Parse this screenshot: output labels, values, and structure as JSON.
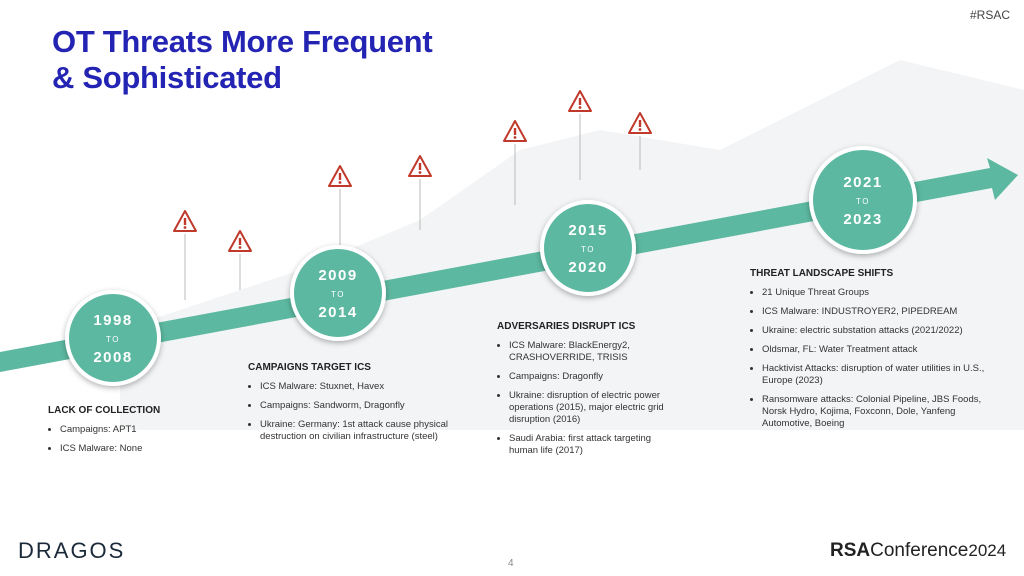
{
  "header": {
    "tag": "#RSAC",
    "title": [
      "OT Threats More Frequent",
      "& Sophisticated"
    ]
  },
  "timeline": [
    {
      "start": "1998",
      "to": "TO",
      "end": "2008",
      "heading": "LACK OF COLLECTION",
      "bullets": [
        "Campaigns: APT1",
        "ICS Malware: None"
      ]
    },
    {
      "start": "2009",
      "to": "TO",
      "end": "2014",
      "heading": "CAMPAIGNS TARGET ICS",
      "bullets": [
        "ICS Malware: Stuxnet, Havex",
        "Campaigns: Sandworm, Dragonfly",
        "Ukraine: Germany: 1st attack cause physical destruction on civilian infrastructure (steel)"
      ]
    },
    {
      "start": "2015",
      "to": "TO",
      "end": "2020",
      "heading": "ADVERSARIES DISRUPT ICS",
      "bullets": [
        "ICS Malware: BlackEnergy2, CRASHOVERRIDE, TRISIS",
        "Campaigns: Dragonfly",
        "Ukraine: disruption of electric power operations (2015), major electric grid disruption (2016)",
        "Saudi Arabia: first attack targeting human life (2017)"
      ]
    },
    {
      "start": "2021",
      "to": "TO",
      "end": "2023",
      "heading": "THREAT LANDSCAPE SHIFTS",
      "bullets": [
        "21 Unique Threat Groups",
        "ICS Malware: INDUSTROYER2, PIPEDREAM",
        "Ukraine: electric substation attacks (2021/2022)",
        "Oldsmar, FL: Water Treatment attack",
        "Hacktivist Attacks: disruption of water utilities in U.S., Europe (2023)",
        "Ransomware attacks: Colonial Pipeline, JBS Foods, Norsk Hydro, Kojima, Foxconn, Dole, Yanfeng Automotive, Boeing"
      ]
    }
  ],
  "footer": {
    "page": "4",
    "logo": "DRAGOS",
    "conference": {
      "brand": "RSA",
      "name": "Conference",
      "year": "2024"
    }
  }
}
